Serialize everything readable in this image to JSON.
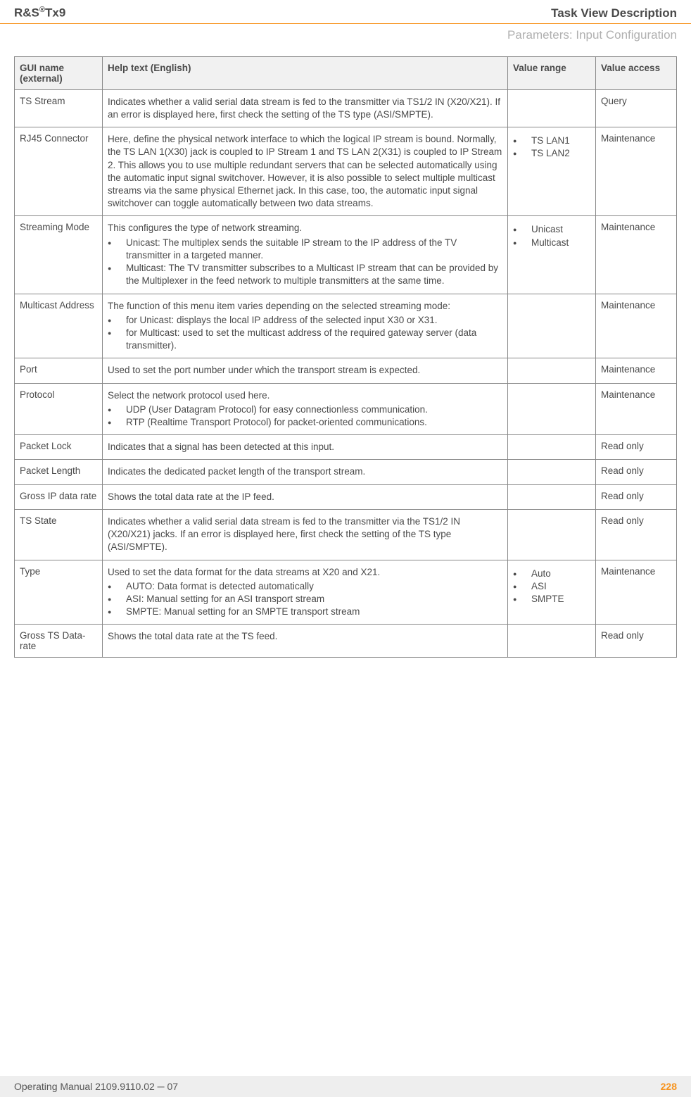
{
  "header": {
    "product_prefix": "R&S",
    "product_sup": "®",
    "product_suffix": "Tx9",
    "section": "Task View Description",
    "subtitle": "Parameters: Input Configuration"
  },
  "table": {
    "headers": {
      "gui": "GUI name (external)",
      "help": "Help text (English)",
      "range": "Value range",
      "access": "Value access"
    },
    "rows": [
      {
        "gui": "TS Stream",
        "help_type": "text",
        "help": "Indicates whether a valid serial data stream is fed to the transmitter via TS1/2 IN (X20/X21). If an error is displayed here, first check the setting of the TS type (ASI/SMPTE).",
        "range_type": "empty",
        "range": [],
        "access": "Query"
      },
      {
        "gui": "RJ45 Connector",
        "help_type": "text",
        "help": "Here, define the physical network interface to which the logical IP stream is bound. Normally, the TS LAN 1(X30) jack is coupled to IP Stream 1 and TS LAN 2(X31) is coupled to IP Stream 2. This allows you to use multiple redundant servers that can be selected automatically using the automatic input signal switchover. However, it is also possible to select multiple multicast streams via the same physical Ethernet jack. In this case, too, the automatic input signal switchover can toggle automatically between two data streams.",
        "range_type": "list",
        "range": [
          "TS LAN1",
          "TS LAN2"
        ],
        "access": "Maintenance"
      },
      {
        "gui": "Streaming Mode",
        "help_type": "intro_list",
        "help_intro": "This configures the type of network streaming.",
        "help_items": [
          "Unicast: The multiplex sends the suitable IP stream to the IP address of the TV transmitter in a targeted manner.",
          "Multicast: The TV transmitter subscribes to a Multicast IP stream that can be provided by the Multiplexer in the feed network to multiple transmitters at the same time."
        ],
        "range_type": "list",
        "range": [
          "Unicast",
          "Multicast"
        ],
        "access": "Maintenance"
      },
      {
        "gui": "Multicast Address",
        "help_type": "intro_list",
        "help_intro": "The function of this menu item varies depending on the selected streaming mode:",
        "help_items": [
          "for Unicast: displays the local IP address of the selected input X30 or X31.",
          "for Multicast: used to set the multicast address of the required gateway server (data transmitter)."
        ],
        "range_type": "empty",
        "range": [],
        "access": "Maintenance"
      },
      {
        "gui": "Port",
        "help_type": "text",
        "help": "Used to set the port number under which the transport stream is expected.",
        "range_type": "empty",
        "range": [],
        "access": "Maintenance"
      },
      {
        "gui": "Protocol",
        "help_type": "intro_list",
        "help_intro": "Select the network protocol used here.",
        "help_items": [
          "UDP (User Datagram Protocol) for easy connectionless communication.",
          "RTP (Realtime Transport Protocol) for packet-oriented communications."
        ],
        "range_type": "empty",
        "range": [],
        "access": "Maintenance"
      },
      {
        "gui": "Packet Lock",
        "help_type": "text",
        "help": "Indicates that a signal has been detected at this input.",
        "range_type": "empty",
        "range": [],
        "access": "Read only"
      },
      {
        "gui": "Packet Length",
        "help_type": "text",
        "help": "Indicates the dedicated packet length of the transport stream.",
        "range_type": "empty",
        "range": [],
        "access": "Read only"
      },
      {
        "gui": "Gross IP data rate",
        "help_type": "text",
        "help": "Shows the total data rate at the IP feed.",
        "range_type": "empty",
        "range": [],
        "access": "Read only"
      },
      {
        "gui": "TS State",
        "help_type": "text",
        "help": "Indicates whether a valid serial data stream is fed to the transmitter via the TS1/2 IN (X20/X21) jacks. If an error is displayed here, first check the setting of the TS type (ASI/SMPTE).",
        "range_type": "empty",
        "range": [],
        "access": "Read only"
      },
      {
        "gui": "Type",
        "help_type": "intro_list",
        "help_intro": "Used to set the data format for the data streams at X20 and X21.",
        "help_items": [
          "AUTO: Data format is detected automatically",
          "ASI: Manual setting for an ASI transport stream",
          "SMPTE: Manual setting for an SMPTE transport stream"
        ],
        "range_type": "list",
        "range": [
          "Auto",
          "ASI",
          "SMPTE"
        ],
        "access": "Maintenance"
      },
      {
        "gui": "Gross TS Data-rate",
        "help_type": "text",
        "help": "Shows the total data rate at the TS feed.",
        "range_type": "empty",
        "range": [],
        "access": "Read only"
      }
    ]
  },
  "footer": {
    "manual": "Operating Manual 2109.9110.02 ─ 07",
    "page": "228"
  }
}
